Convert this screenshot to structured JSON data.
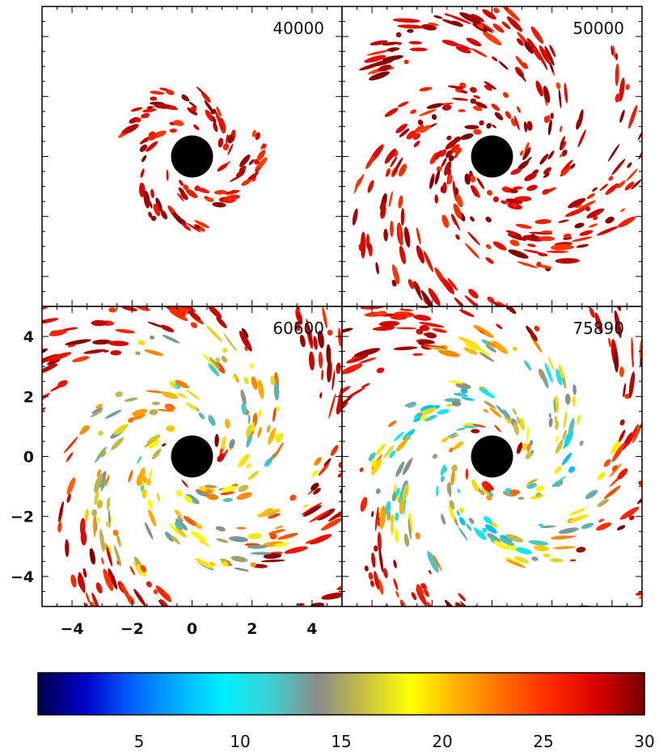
{
  "chart_data": {
    "type": "heatmap",
    "panels": [
      {
        "time_label": "40000",
        "level": 0.1
      },
      {
        "time_label": "50000",
        "level": 0.55
      },
      {
        "time_label": "60600",
        "level": 0.82
      },
      {
        "time_label": "75890",
        "level": 1.0
      }
    ],
    "x_ticks": [
      "−4",
      "−2",
      "0",
      "2",
      "4"
    ],
    "y_ticks": [
      "4",
      "2",
      "0",
      "−2",
      "−4"
    ],
    "x_tick_values": [
      -4,
      -2,
      0,
      2,
      4
    ],
    "y_tick_values": [
      4,
      2,
      0,
      -2,
      -4
    ],
    "xlim": [
      -5,
      5
    ],
    "ylim": [
      -5,
      5
    ],
    "black_hole_radius": 0.7,
    "colorbar": {
      "range": [
        0,
        30
      ],
      "tick_values": [
        5,
        10,
        15,
        20,
        25,
        30
      ],
      "tick_labels": [
        "5",
        "10",
        "15",
        "20",
        "25",
        "30"
      ],
      "colors": [
        "#00004a",
        "#0000c8",
        "#0060ff",
        "#00b0ff",
        "#00f0ff",
        "#40d0d0",
        "#8a8a8a",
        "#c8c040",
        "#ffff00",
        "#ffb000",
        "#ff6a00",
        "#ff2a00",
        "#d80000",
        "#780000"
      ]
    }
  }
}
